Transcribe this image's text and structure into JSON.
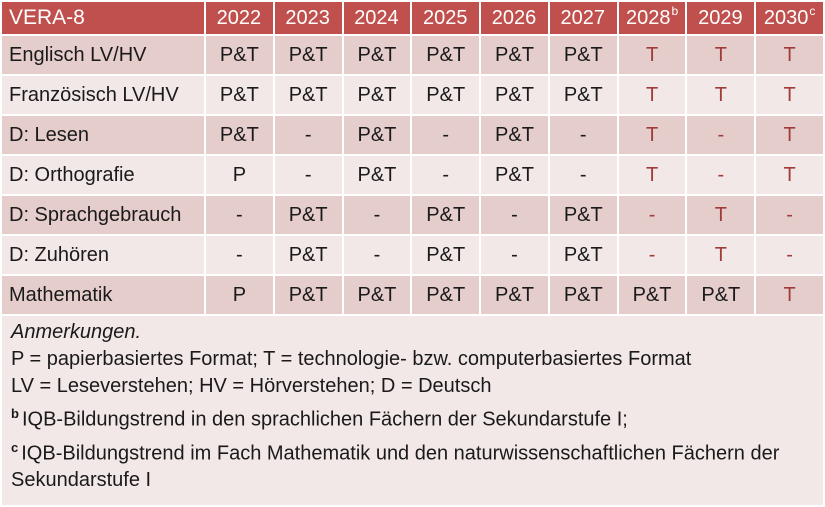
{
  "colors": {
    "page-bg": "#FFFFFF",
    "header-bg": "#C0504D",
    "header-text": "#FFFFFF",
    "row-odd": "#E5CDCC",
    "row-even": "#F2E8E7",
    "note-bg": "#F2E8E7",
    "accent-red": "#A03C3A",
    "body-text": "#1A1A1A"
  },
  "table": {
    "header": {
      "label": "VERA-8",
      "columns": [
        {
          "label": "2022"
        },
        {
          "label": "2023"
        },
        {
          "label": "2024"
        },
        {
          "label": "2025"
        },
        {
          "label": "2026"
        },
        {
          "label": "2027"
        },
        {
          "label": "2028",
          "sup": "b"
        },
        {
          "label": "2029"
        },
        {
          "label": "2030",
          "sup": "c"
        }
      ]
    },
    "rows": [
      {
        "label": "Englisch LV/HV",
        "cells": [
          {
            "v": "P&T",
            "red": false
          },
          {
            "v": "P&T",
            "red": false
          },
          {
            "v": "P&T",
            "red": false
          },
          {
            "v": "P&T",
            "red": false
          },
          {
            "v": "P&T",
            "red": false
          },
          {
            "v": "P&T",
            "red": false
          },
          {
            "v": "T",
            "red": true
          },
          {
            "v": "T",
            "red": true
          },
          {
            "v": "T",
            "red": true
          }
        ]
      },
      {
        "label": "Französisch LV/HV",
        "cells": [
          {
            "v": "P&T",
            "red": false
          },
          {
            "v": "P&T",
            "red": false
          },
          {
            "v": "P&T",
            "red": false
          },
          {
            "v": "P&T",
            "red": false
          },
          {
            "v": "P&T",
            "red": false
          },
          {
            "v": "P&T",
            "red": false
          },
          {
            "v": "T",
            "red": true
          },
          {
            "v": "T",
            "red": true
          },
          {
            "v": "T",
            "red": true
          }
        ]
      },
      {
        "label": "D: Lesen",
        "cells": [
          {
            "v": "P&T",
            "red": false
          },
          {
            "v": "-",
            "red": false
          },
          {
            "v": "P&T",
            "red": false
          },
          {
            "v": "-",
            "red": false
          },
          {
            "v": "P&T",
            "red": false
          },
          {
            "v": "-",
            "red": false
          },
          {
            "v": "T",
            "red": true
          },
          {
            "v": "-",
            "red": true
          },
          {
            "v": "T",
            "red": true
          }
        ]
      },
      {
        "label": "D: Orthografie",
        "cells": [
          {
            "v": "P",
            "red": false
          },
          {
            "v": "-",
            "red": false
          },
          {
            "v": "P&T",
            "red": false
          },
          {
            "v": "-",
            "red": false
          },
          {
            "v": "P&T",
            "red": false
          },
          {
            "v": "-",
            "red": false
          },
          {
            "v": "T",
            "red": true
          },
          {
            "v": "-",
            "red": true
          },
          {
            "v": "T",
            "red": true
          }
        ]
      },
      {
        "label": "D: Sprachgebrauch",
        "cells": [
          {
            "v": "-",
            "red": false
          },
          {
            "v": "P&T",
            "red": false
          },
          {
            "v": "-",
            "red": false
          },
          {
            "v": "P&T",
            "red": false
          },
          {
            "v": "-",
            "red": false
          },
          {
            "v": "P&T",
            "red": false
          },
          {
            "v": "-",
            "red": true
          },
          {
            "v": "T",
            "red": true
          },
          {
            "v": "-",
            "red": true
          }
        ]
      },
      {
        "label": "D: Zuhören",
        "cells": [
          {
            "v": "-",
            "red": false
          },
          {
            "v": "P&T",
            "red": false
          },
          {
            "v": "-",
            "red": false
          },
          {
            "v": "P&T",
            "red": false
          },
          {
            "v": "-",
            "red": false
          },
          {
            "v": "P&T",
            "red": false
          },
          {
            "v": "-",
            "red": true
          },
          {
            "v": "T",
            "red": true
          },
          {
            "v": "-",
            "red": true
          }
        ]
      },
      {
        "label": "Mathematik",
        "cells": [
          {
            "v": "P",
            "red": false
          },
          {
            "v": "P&T",
            "red": false
          },
          {
            "v": "P&T",
            "red": false
          },
          {
            "v": "P&T",
            "red": false
          },
          {
            "v": "P&T",
            "red": false
          },
          {
            "v": "P&T",
            "red": false
          },
          {
            "v": "P&T",
            "red": false
          },
          {
            "v": "P&T",
            "red": false
          },
          {
            "v": "T",
            "red": true
          }
        ]
      }
    ]
  },
  "notes": {
    "title": "Anmerkungen.",
    "line_format": "P = papierbasiertes Format; T = technologie- bzw. computerbasiertes Format",
    "line_abbrev": "LV = Leseverstehen; HV = Hörverstehen; D = Deutsch",
    "fn_b": {
      "marker": "b",
      "text": "IQB-Bildungstrend in den sprachlichen Fächern der Sekundarstufe I;"
    },
    "fn_c": {
      "marker": "c",
      "text": "IQB-Bildungstrend im Fach Mathematik und den naturwissenschaftlichen Fächern der Sekundarstufe I"
    }
  }
}
